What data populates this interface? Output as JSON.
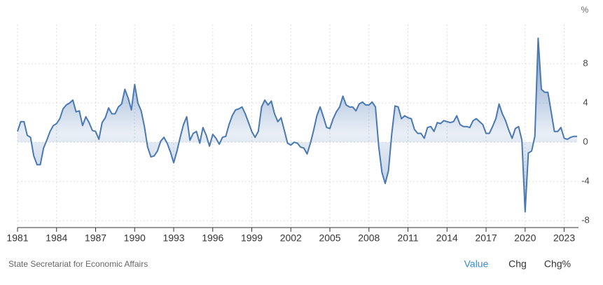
{
  "chart_data": {
    "type": "area",
    "y_unit": "%",
    "color": "#4a78b3",
    "x": [
      1981,
      1981.25,
      1981.5,
      1981.75,
      1982,
      1982.25,
      1982.5,
      1982.75,
      1983,
      1983.25,
      1983.5,
      1983.75,
      1984,
      1984.25,
      1984.5,
      1984.75,
      1985,
      1985.25,
      1985.5,
      1985.75,
      1986,
      1986.25,
      1986.5,
      1986.75,
      1987,
      1987.25,
      1987.5,
      1987.75,
      1988,
      1988.25,
      1988.5,
      1988.75,
      1989,
      1989.25,
      1989.5,
      1989.75,
      1990,
      1990.25,
      1990.5,
      1990.75,
      1991,
      1991.25,
      1991.5,
      1991.75,
      1992,
      1992.25,
      1992.5,
      1992.75,
      1993,
      1993.25,
      1993.5,
      1993.75,
      1994,
      1994.25,
      1994.5,
      1994.75,
      1995,
      1995.25,
      1995.5,
      1995.75,
      1996,
      1996.25,
      1996.5,
      1996.75,
      1997,
      1997.25,
      1997.5,
      1997.75,
      1998,
      1998.25,
      1998.5,
      1998.75,
      1999,
      1999.25,
      1999.5,
      1999.75,
      2000,
      2000.25,
      2000.5,
      2000.75,
      2001,
      2001.25,
      2001.5,
      2001.75,
      2002,
      2002.25,
      2002.5,
      2002.75,
      2003,
      2003.25,
      2003.5,
      2003.75,
      2004,
      2004.25,
      2004.5,
      2004.75,
      2005,
      2005.25,
      2005.5,
      2005.75,
      2006,
      2006.25,
      2006.5,
      2006.75,
      2007,
      2007.25,
      2007.5,
      2007.75,
      2008,
      2008.25,
      2008.5,
      2008.75,
      2009,
      2009.25,
      2009.5,
      2009.75,
      2010,
      2010.25,
      2010.5,
      2010.75,
      2011,
      2011.25,
      2011.5,
      2011.75,
      2012,
      2012.25,
      2012.5,
      2012.75,
      2013,
      2013.25,
      2013.5,
      2013.75,
      2014,
      2014.25,
      2014.5,
      2014.75,
      2015,
      2015.25,
      2015.5,
      2015.75,
      2016,
      2016.25,
      2016.5,
      2016.75,
      2017,
      2017.25,
      2017.5,
      2017.75,
      2018,
      2018.25,
      2018.5,
      2018.75,
      2019,
      2019.25,
      2019.5,
      2019.75,
      2020,
      2020.25,
      2020.5,
      2020.75,
      2021,
      2021.25,
      2021.5,
      2021.75,
      2022,
      2022.25,
      2022.5,
      2022.75,
      2023,
      2023.25,
      2023.5,
      2023.75,
      2024
    ],
    "values": [
      1.1,
      2.1,
      2.1,
      0.7,
      0.5,
      -1.4,
      -2.3,
      -2.3,
      -0.6,
      0.2,
      1.1,
      1.7,
      1.9,
      2.4,
      3.4,
      3.8,
      4.0,
      4.3,
      3.1,
      3.2,
      1.7,
      2.6,
      2.0,
      1.2,
      1.1,
      0.3,
      2.0,
      2.5,
      3.5,
      2.9,
      2.9,
      3.6,
      3.9,
      5.4,
      4.5,
      3.3,
      5.9,
      4.0,
      3.2,
      1.6,
      -0.5,
      -1.5,
      -1.4,
      -0.9,
      0.1,
      0.5,
      -0.1,
      -1.0,
      -2.1,
      -0.9,
      0.5,
      1.8,
      2.6,
      0.2,
      0.9,
      1.1,
      -0.1,
      1.5,
      0.7,
      -0.4,
      0.8,
      0.4,
      -0.2,
      0.5,
      0.6,
      1.8,
      2.7,
      3.3,
      3.4,
      3.6,
      2.9,
      2.0,
      1.1,
      0.5,
      1.1,
      3.6,
      4.3,
      3.8,
      4.2,
      2.9,
      2.1,
      2.5,
      1.2,
      -0.1,
      -0.3,
      0.0,
      -0.1,
      -0.5,
      -0.6,
      -1.2,
      -0.1,
      1.2,
      2.7,
      3.6,
      2.6,
      1.5,
      1.4,
      2.4,
      3.1,
      3.6,
      4.7,
      3.8,
      3.6,
      3.6,
      3.2,
      3.9,
      4.1,
      3.8,
      3.8,
      4.1,
      3.6,
      -0.4,
      -3.1,
      -4.2,
      -2.9,
      0.8,
      3.7,
      3.6,
      2.4,
      2.7,
      2.5,
      2.4,
      1.3,
      0.9,
      0.9,
      0.4,
      1.5,
      1.6,
      1.1,
      2.0,
      1.9,
      2.2,
      2.1,
      2.0,
      2.1,
      2.7,
      1.8,
      1.6,
      1.6,
      1.5,
      2.2,
      2.4,
      2.1,
      1.8,
      0.9,
      0.9,
      1.6,
      2.4,
      3.9,
      2.9,
      2.2,
      1.2,
      0.4,
      1.4,
      1.6,
      0.2,
      -7.1,
      -1.1,
      -0.9,
      0.6,
      10.6,
      5.4,
      5.1,
      5.1,
      3.1,
      1.1,
      1.1,
      1.5,
      0.4,
      0.3,
      0.5,
      0.6,
      0.6
    ],
    "xlim": [
      1981,
      2024.1
    ],
    "xticks": [
      1981,
      1984,
      1987,
      1990,
      1993,
      1996,
      1999,
      2002,
      2005,
      2008,
      2011,
      2014,
      2017,
      2020,
      2023
    ],
    "ylim": [
      -8.7,
      12
    ],
    "yticks": [
      -8,
      -4,
      0,
      4,
      8
    ],
    "grid": true
  },
  "source": "State Secretariat for Economic Affairs",
  "buttons": [
    "Value",
    "Chg",
    "Chg%"
  ]
}
